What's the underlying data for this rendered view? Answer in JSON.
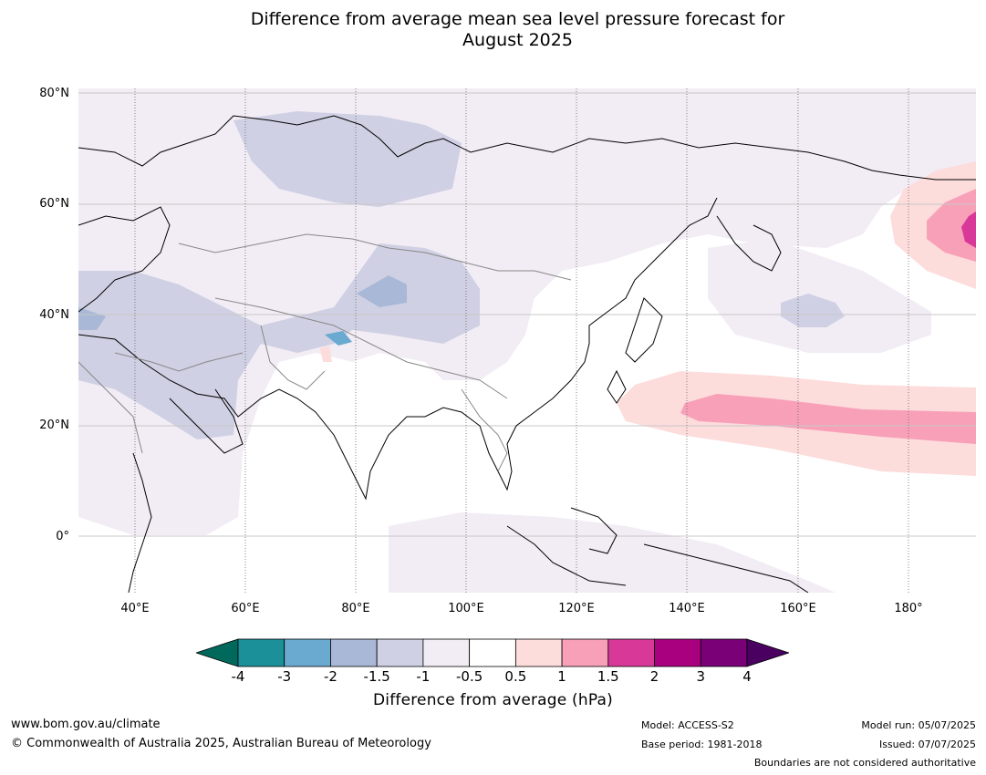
{
  "title_line1": "Difference from average mean sea level pressure forecast for",
  "title_line2": "August 2025",
  "lat_labels": [
    "80°N",
    "60°N",
    "40°N",
    "20°N",
    "0°"
  ],
  "lon_labels": [
    "40°E",
    "60°E",
    "80°E",
    "100°E",
    "120°E",
    "140°E",
    "160°E",
    "180°"
  ],
  "colorbar": {
    "ticks": [
      "-4",
      "-3",
      "-2",
      "-1.5",
      "-1",
      "-0.5",
      "0.5",
      "1",
      "1.5",
      "2",
      "3",
      "4"
    ],
    "colors": [
      "#00695c",
      "#1b9099",
      "#6aa9d0",
      "#a8b8d6",
      "#cfd0e3",
      "#f2ecf5",
      "#ffffff",
      "#fddcdc",
      "#f7a0b8",
      "#d83898",
      "#a8007e",
      "#7a0077",
      "#4a0060"
    ],
    "label": "Difference from average (hPa)"
  },
  "footer": {
    "website": "www.bom.gov.au/climate",
    "copyright": "© Commonwealth of Australia 2025, Australian Bureau of Meteorology",
    "model": "Model: ACCESS-S2",
    "base_period": "Base period: 1981-2018",
    "model_run": "Model run: 05/07/2025",
    "issued": "Issued: 07/07/2025",
    "disclaimer": "Boundaries are not considered authoritative"
  }
}
